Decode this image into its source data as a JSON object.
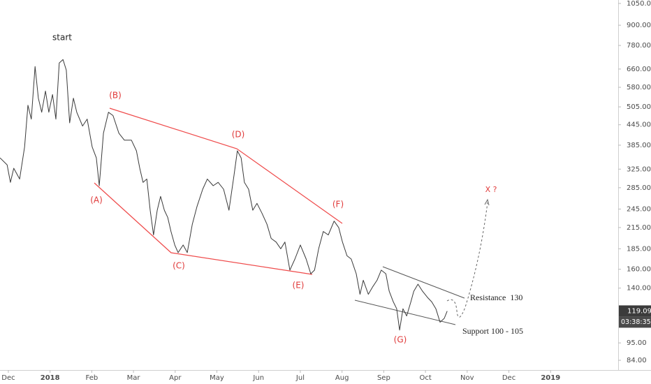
{
  "chart_data": {
    "type": "line",
    "log_scale": true,
    "color": "#3a3a3a",
    "x": [
      -0.2,
      -0.03,
      0.05,
      0.13,
      0.27,
      0.39,
      0.47,
      0.55,
      0.64,
      0.72,
      0.8,
      0.89,
      0.97,
      1.06,
      1.14,
      1.22,
      1.31,
      1.39,
      1.47,
      1.56,
      1.64,
      1.78,
      1.89,
      2.01,
      2.11,
      2.18,
      2.28,
      2.4,
      2.51,
      2.65,
      2.78,
      2.95,
      3.07,
      3.15,
      3.23,
      3.32,
      3.4,
      3.48,
      3.57,
      3.65,
      3.74,
      3.82,
      3.9,
      3.99,
      4.07,
      4.19,
      4.29,
      4.41,
      4.52,
      4.66,
      4.77,
      4.91,
      5.03,
      5.16,
      5.29,
      5.41,
      5.49,
      5.58,
      5.66,
      5.76,
      5.86,
      5.96,
      6.08,
      6.2,
      6.3,
      6.42,
      6.53,
      6.63,
      6.75,
      6.87,
      7.0,
      7.14,
      7.25,
      7.34,
      7.44,
      7.55,
      7.67,
      7.81,
      7.92,
      8.01,
      8.12,
      8.22,
      8.34,
      8.43,
      8.51,
      8.63,
      8.73,
      8.84,
      8.94,
      9.05,
      9.13,
      9.23,
      9.31,
      9.38,
      9.46,
      9.55,
      9.65,
      9.72,
      9.82,
      9.93,
      10.05,
      10.15,
      10.25,
      10.35,
      10.45,
      10.52
    ],
    "values": [
      352,
      335,
      296,
      327,
      303,
      380,
      511,
      463,
      672,
      537,
      486,
      565,
      486,
      551,
      463,
      689,
      706,
      655,
      451,
      537,
      486,
      441,
      463,
      380,
      352,
      289,
      419,
      486,
      475,
      419,
      399,
      399,
      370,
      327,
      296,
      303,
      243,
      204,
      243,
      268,
      243,
      231,
      209,
      190,
      180,
      190,
      180,
      220,
      249,
      282,
      303,
      289,
      296,
      282,
      243,
      311,
      370,
      352,
      296,
      282,
      243,
      255,
      238,
      220,
      199,
      194,
      185,
      194,
      159,
      172,
      190,
      172,
      155,
      159,
      185,
      209,
      204,
      225,
      215,
      194,
      176,
      172,
      155,
      134,
      148,
      134,
      141,
      148,
      159,
      155,
      137,
      127,
      121,
      104,
      121,
      115,
      127,
      137,
      144,
      137,
      131,
      127,
      121,
      110,
      113,
      119
    ],
    "xlim": [
      -0.2,
      14.62
    ],
    "xticks": [
      {
        "value": 0,
        "label": "Dec"
      },
      {
        "value": 1,
        "label": "2018"
      },
      {
        "value": 2,
        "label": "Feb"
      },
      {
        "value": 3,
        "label": "Mar"
      },
      {
        "value": 4,
        "label": "Apr"
      },
      {
        "value": 5,
        "label": "May"
      },
      {
        "value": 6,
        "label": "Jun"
      },
      {
        "value": 7,
        "label": "Jul"
      },
      {
        "value": 8,
        "label": "Aug"
      },
      {
        "value": 9,
        "label": "Sep"
      },
      {
        "value": 10,
        "label": "Oct"
      },
      {
        "value": 11,
        "label": "Nov"
      },
      {
        "value": 12,
        "label": "Dec"
      },
      {
        "value": 13,
        "label": "2019"
      }
    ],
    "ylim": [
      78.4,
      1076
    ],
    "yticks": [
      {
        "value": 1050,
        "label": "1050.00"
      },
      {
        "value": 900,
        "label": "900.00"
      },
      {
        "value": 780,
        "label": "780.00"
      },
      {
        "value": 660,
        "label": "660.00"
      },
      {
        "value": 580,
        "label": "580.00"
      },
      {
        "value": 505,
        "label": "505.00"
      },
      {
        "value": 445,
        "label": "445.00"
      },
      {
        "value": 385,
        "label": "385.00"
      },
      {
        "value": 325,
        "label": "325.00"
      },
      {
        "value": 285,
        "label": "285.00"
      },
      {
        "value": 245,
        "label": "245.00"
      },
      {
        "value": 215,
        "label": "215.00"
      },
      {
        "value": 185,
        "label": "185.00"
      },
      {
        "value": 160,
        "label": "160.00"
      },
      {
        "value": 140,
        "label": "140.00"
      },
      {
        "value": 95,
        "label": "95.00"
      },
      {
        "value": 84,
        "label": "84.00"
      }
    ],
    "last_price": 119.09,
    "countdown": "03:38:35",
    "annotations": [
      "start",
      "(A)",
      "(B)",
      "(C)",
      "(D)",
      "(E)",
      "(F)",
      "(G)",
      "X ?",
      "Resistance  130",
      "Support 100 - 105"
    ]
  }
}
